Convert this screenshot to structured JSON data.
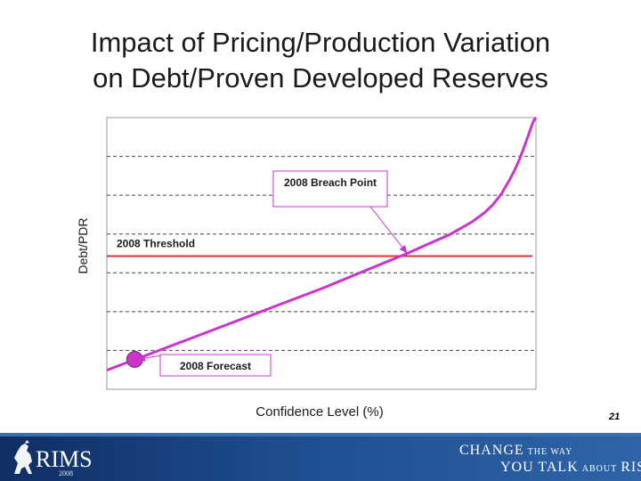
{
  "slide": {
    "title_line1": "Impact of Pricing/Production Variation",
    "title_line2": "on Debt/Proven Developed Reserves",
    "page_number": "21"
  },
  "footer": {
    "logo_text": "RIMS",
    "logo_year": "2008",
    "tagline_1": {
      "big_1": "CHANGE",
      "small": "THE WAY"
    },
    "tagline_2": {
      "big_1": "YOU TALK",
      "small": "ABOUT",
      "big_2": "RISK"
    },
    "logo-icon": "lion-rampant-icon"
  },
  "chart_data": {
    "type": "line",
    "title": "",
    "xlabel": "Confidence Level (%)",
    "ylabel": "Debt/PDR",
    "xlim": [
      0,
      100
    ],
    "ylim": [
      0,
      100
    ],
    "grid": "horizontal-dashed",
    "show_tick_labels": false,
    "series": [
      {
        "color": "#cc33cc",
        "x": [
          0,
          10,
          20,
          30,
          40,
          50,
          60,
          70,
          75,
          80,
          85,
          88,
          90,
          92,
          94,
          95,
          96,
          97,
          98,
          99,
          99.5,
          100
        ],
        "y": [
          7,
          13,
          19,
          25,
          31,
          37,
          43.5,
          50,
          53.5,
          57,
          61.5,
          65,
          68,
          72,
          77.5,
          80.5,
          84,
          88,
          92.5,
          97,
          99,
          100
        ]
      }
    ],
    "threshold": {
      "label": "2008 Threshold",
      "y": 49,
      "color": "#e03030"
    },
    "annotations": [
      {
        "label": "2008 Breach Point",
        "target_x": 70,
        "target_y": 50
      },
      {
        "label": "2008 Forecast",
        "target_x": 7,
        "target_y": 11
      }
    ],
    "forecast_point": {
      "x": 6.5,
      "y": 11,
      "color": "#cc33cc"
    }
  }
}
